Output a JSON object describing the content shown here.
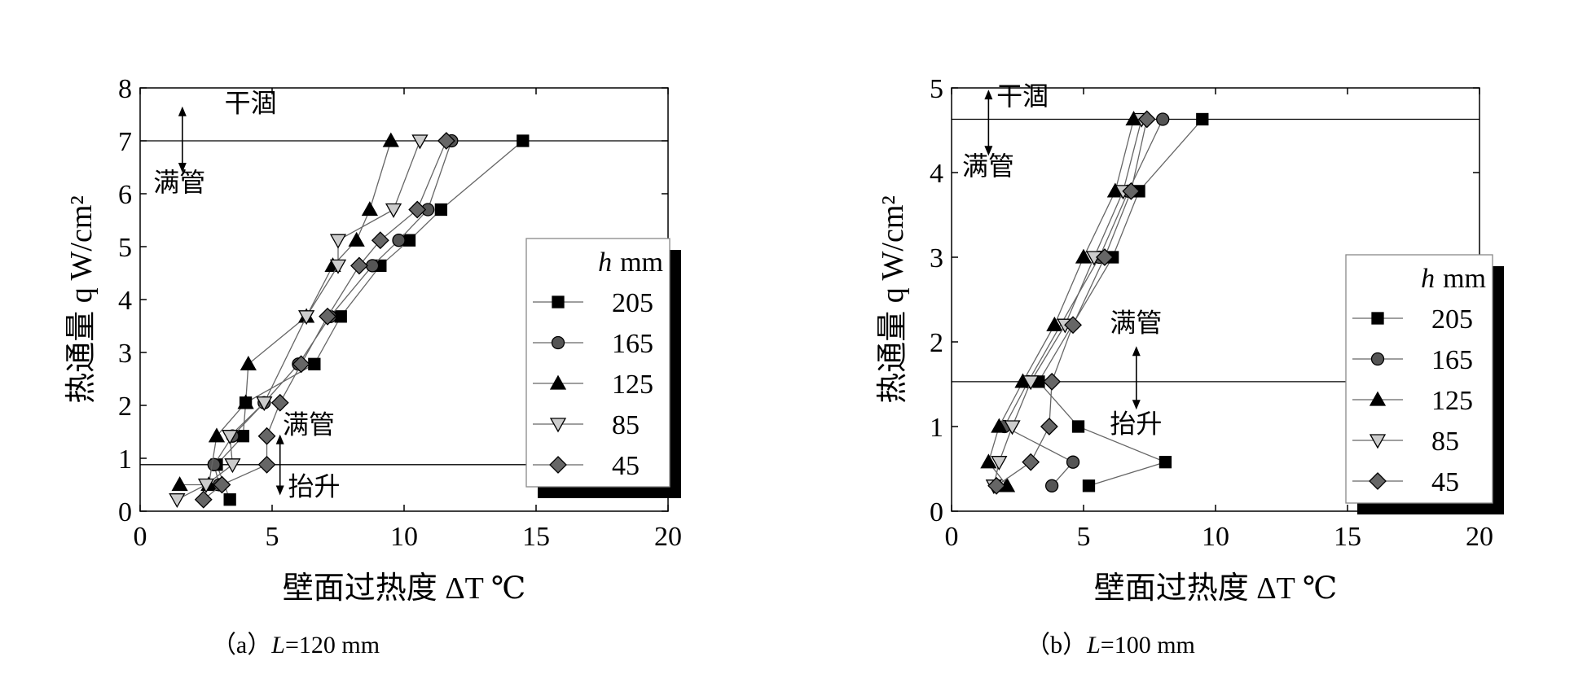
{
  "chart_data": [
    {
      "type": "scatter",
      "caption_prefix": "（a）",
      "caption_var": "L",
      "caption_rest": "=120 mm",
      "xlabel": "壁面过热度 ΔT ℃",
      "ylabel": "热通量 q W/cm²",
      "xlim": [
        0,
        20
      ],
      "ylim": [
        0,
        8
      ],
      "xticks": [
        "0",
        "5",
        "10",
        "15",
        "20"
      ],
      "yticks": [
        "0",
        "1",
        "2",
        "3",
        "4",
        "5",
        "6",
        "7",
        "8"
      ],
      "legend_title_var": "h",
      "legend_title_unit": "mm",
      "legend_placement": "right",
      "hlines": [
        7.0,
        0.88
      ],
      "annotations": [
        {
          "text": "干涸",
          "x": 3.2,
          "y": 7.55
        },
        {
          "text": "满管",
          "x": 0.5,
          "y": 6.05
        },
        {
          "text": "满管",
          "x": 5.4,
          "y": 1.47
        },
        {
          "text": "抬升",
          "x": 5.6,
          "y": 0.3
        }
      ],
      "series": [
        {
          "name": "205",
          "marker": "square",
          "fill": "#000000",
          "x": [
            3.4,
            2.9,
            3.9,
            4.0,
            6.6,
            7.6,
            9.1,
            10.2,
            11.4,
            14.5
          ],
          "y": [
            0.22,
            0.88,
            1.42,
            2.05,
            2.78,
            3.68,
            4.64,
            5.12,
            5.7,
            7.0
          ]
        },
        {
          "name": "165",
          "marker": "circle",
          "fill": "#555555",
          "x": [
            3.0,
            2.8,
            3.5,
            4.7,
            6.0,
            7.2,
            8.8,
            9.8,
            10.9,
            11.8
          ],
          "y": [
            0.5,
            0.88,
            1.42,
            2.05,
            2.78,
            3.68,
            4.64,
            5.12,
            5.7,
            7.0
          ]
        },
        {
          "name": "125",
          "marker": "triangle-up",
          "fill": "#000000",
          "x": [
            1.5,
            2.6,
            2.9,
            4.0,
            4.1,
            6.3,
            7.3,
            8.2,
            8.7,
            9.5
          ],
          "y": [
            0.5,
            0.5,
            1.42,
            2.05,
            2.78,
            3.68,
            4.64,
            5.12,
            5.7,
            7.0
          ]
        },
        {
          "name": "85",
          "marker": "triangle-down",
          "fill": "#cccccc",
          "x": [
            1.4,
            2.5,
            3.5,
            3.4,
            4.7,
            6.3,
            7.5,
            7.5,
            9.6,
            10.6
          ],
          "y": [
            0.22,
            0.5,
            0.88,
            1.42,
            2.05,
            3.68,
            4.64,
            5.12,
            5.7,
            7.0
          ]
        },
        {
          "name": "45",
          "marker": "diamond",
          "fill": "#666666",
          "x": [
            2.4,
            3.1,
            4.8,
            4.8,
            5.3,
            6.1,
            7.1,
            8.3,
            9.1,
            10.5,
            11.6
          ],
          "y": [
            0.22,
            0.5,
            0.88,
            1.42,
            2.05,
            2.78,
            3.68,
            4.64,
            5.12,
            5.7,
            7.0
          ]
        }
      ]
    },
    {
      "type": "scatter",
      "caption_prefix": "（b）",
      "caption_var": "L",
      "caption_rest": "=100 mm",
      "xlabel": "壁面过热度 ΔT ℃",
      "ylabel": "热通量 q W/cm²",
      "xlim": [
        0,
        20
      ],
      "ylim": [
        0,
        5
      ],
      "xticks": [
        "0",
        "5",
        "10",
        "15",
        "20"
      ],
      "yticks": [
        "0",
        "1",
        "2",
        "3",
        "4",
        "5"
      ],
      "legend_title_var": "h",
      "legend_title_unit": "mm",
      "legend_placement": "right",
      "hlines": [
        4.63,
        1.53
      ],
      "annotations": [
        {
          "text": "干涸",
          "x": 1.7,
          "y": 4.8
        },
        {
          "text": "满管",
          "x": 0.4,
          "y": 3.97
        },
        {
          "text": "满管",
          "x": 6.0,
          "y": 2.12
        },
        {
          "text": "抬升",
          "x": 6.0,
          "y": 0.93
        }
      ],
      "series": [
        {
          "name": "205",
          "marker": "square",
          "fill": "#000000",
          "x": [
            5.2,
            8.1,
            4.8,
            3.3,
            6.1,
            7.1,
            9.5
          ],
          "y": [
            0.3,
            0.58,
            1.0,
            1.53,
            3.0,
            3.78,
            4.63
          ]
        },
        {
          "name": "165",
          "marker": "circle",
          "fill": "#555555",
          "x": [
            3.8,
            4.6,
            2.0,
            2.9,
            5.6,
            6.7,
            8.0
          ],
          "y": [
            0.3,
            0.58,
            1.0,
            1.53,
            3.0,
            3.78,
            4.63
          ]
        },
        {
          "name": "125",
          "marker": "triangle-up",
          "fill": "#000000",
          "x": [
            2.1,
            1.4,
            1.8,
            2.7,
            3.9,
            5.0,
            6.2,
            6.9
          ],
          "y": [
            0.3,
            0.58,
            1.0,
            1.53,
            2.2,
            3.0,
            3.78,
            4.63
          ]
        },
        {
          "name": "85",
          "marker": "triangle-down",
          "fill": "#cccccc",
          "x": [
            1.6,
            1.8,
            2.3,
            3.0,
            4.3,
            5.4,
            6.5,
            7.2
          ],
          "y": [
            0.3,
            0.58,
            1.0,
            1.53,
            2.2,
            3.0,
            3.78,
            4.63
          ]
        },
        {
          "name": "45",
          "marker": "diamond",
          "fill": "#666666",
          "x": [
            1.7,
            3.0,
            3.7,
            3.8,
            4.6,
            5.8,
            6.8,
            7.4
          ],
          "y": [
            0.3,
            0.58,
            1.0,
            1.53,
            2.2,
            3.0,
            3.78,
            4.63
          ]
        }
      ]
    }
  ]
}
